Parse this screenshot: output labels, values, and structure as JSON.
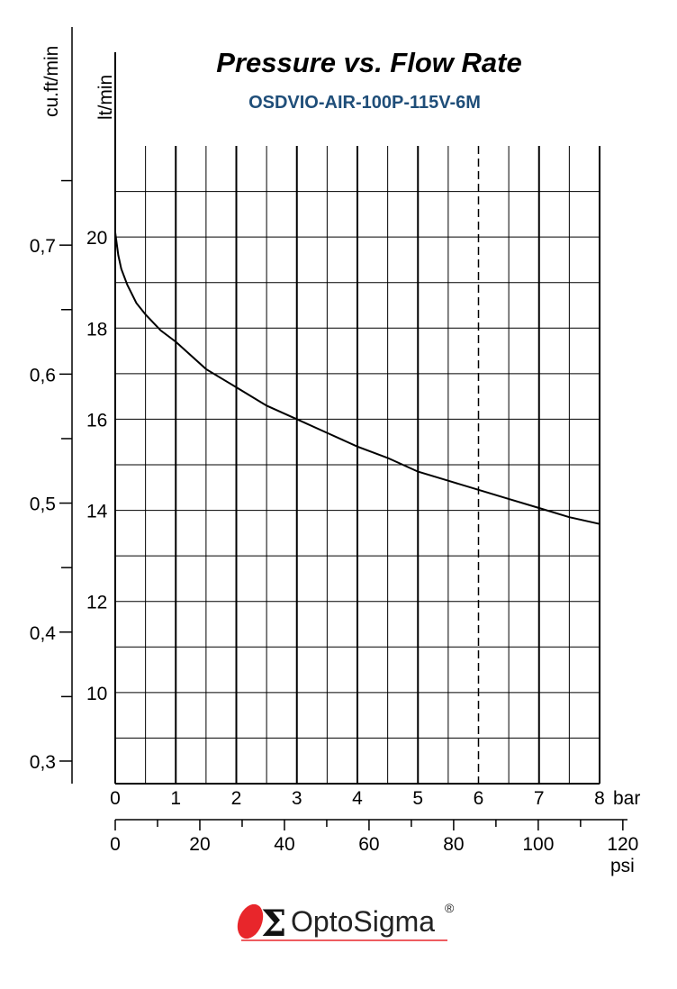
{
  "chart_data": {
    "type": "line",
    "title": "Pressure vs. Flow Rate",
    "subtitle": "OSDVIO-AIR-100P-115V-6M",
    "xlabel": "bar",
    "xlabel_secondary": "psi",
    "ylabel": "lt/min",
    "ylabel_secondary": "cu.ft/min",
    "xlim": [
      0,
      8
    ],
    "ylim": [
      8.0,
      22.0
    ],
    "x_ticks": [
      "0",
      "1",
      "2",
      "3",
      "4",
      "5",
      "6",
      "7",
      "8"
    ],
    "x2_ticks": [
      "0",
      "20",
      "40",
      "60",
      "80",
      "100",
      "120"
    ],
    "x2_tick_values": [
      0,
      20,
      40,
      60,
      80,
      100,
      120
    ],
    "y_ticks": [
      "10",
      "12",
      "14",
      "16",
      "18",
      "20"
    ],
    "y_tick_values": [
      10,
      12,
      14,
      16,
      18,
      20
    ],
    "y2_ticks": [
      "0,3",
      "0,4",
      "0,5",
      "0,6",
      "0,7"
    ],
    "y2_tick_values": [
      0.3,
      0.4,
      0.5,
      0.6,
      0.7
    ],
    "reference_line_x": 6,
    "grid": true,
    "series": [
      {
        "x": [
          0,
          0.05,
          0.1,
          0.2,
          0.35,
          0.5,
          0.75,
          1.0,
          1.5,
          2.0,
          2.5,
          3.0,
          3.5,
          4.0,
          4.5,
          5.0,
          5.5,
          6.0,
          6.5,
          7.0,
          7.5,
          8.0
        ],
        "y": [
          20.1,
          19.6,
          19.3,
          18.95,
          18.55,
          18.3,
          17.95,
          17.7,
          17.1,
          16.7,
          16.3,
          16.0,
          15.7,
          15.4,
          15.15,
          14.85,
          14.65,
          14.45,
          14.25,
          14.05,
          13.85,
          13.7
        ]
      }
    ],
    "colors": {
      "curve": "#000000",
      "subtitle": "#1f4e79",
      "logo_red": "#e8262b"
    }
  },
  "logo": {
    "brand": "OptoSigma",
    "registered": "®"
  }
}
